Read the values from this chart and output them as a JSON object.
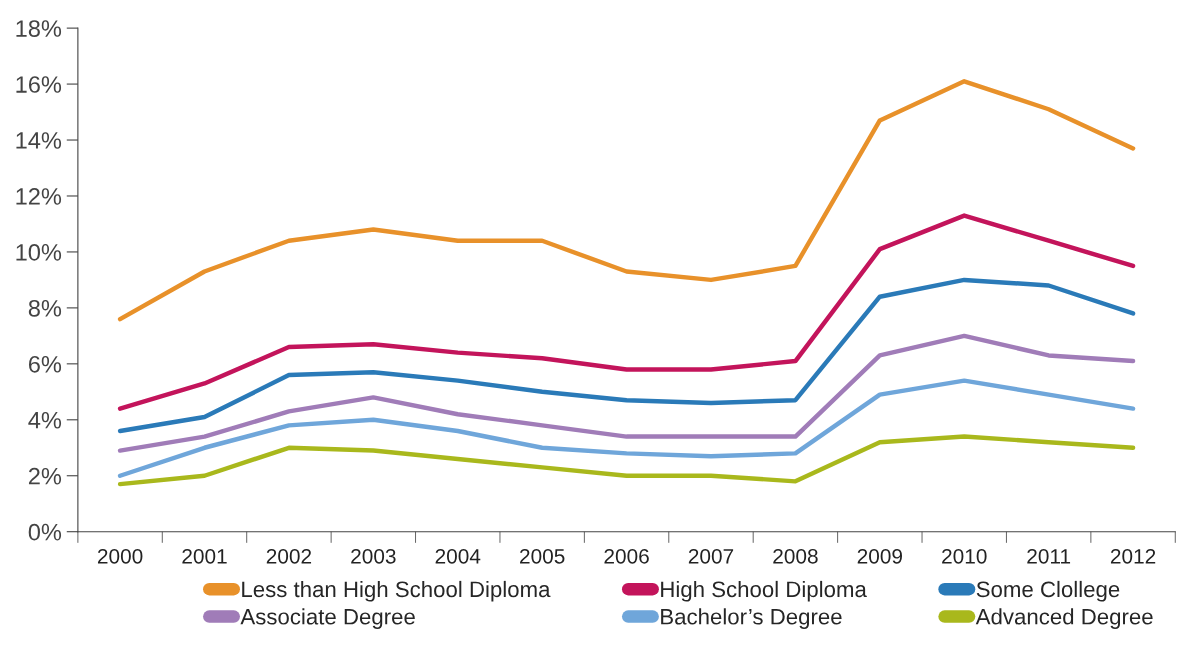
{
  "chart_data": {
    "type": "line",
    "categories": [
      "2000",
      "2001",
      "2002",
      "2003",
      "2004",
      "2005",
      "2006",
      "2007",
      "2008",
      "2009",
      "2010",
      "2011",
      "2012"
    ],
    "series": [
      {
        "name": "Less than High School Diploma",
        "color": "#e8912a",
        "values": [
          7.6,
          9.3,
          10.4,
          10.8,
          10.4,
          10.4,
          9.3,
          9.0,
          9.5,
          14.7,
          16.1,
          15.1,
          13.7
        ]
      },
      {
        "name": "High School Diploma",
        "color": "#c3145b",
        "values": [
          4.4,
          5.3,
          6.6,
          6.7,
          6.4,
          6.2,
          5.8,
          5.8,
          6.1,
          10.1,
          11.3,
          10.4,
          9.5
        ]
      },
      {
        "name": "Some Clollege",
        "color": "#2a7ab8",
        "values": [
          3.6,
          4.1,
          5.6,
          5.7,
          5.4,
          5.0,
          4.7,
          4.6,
          4.7,
          8.4,
          9.0,
          8.8,
          7.8
        ]
      },
      {
        "name": "Associate Degree",
        "color": "#a07cb8",
        "values": [
          2.9,
          3.4,
          4.3,
          4.8,
          4.2,
          3.8,
          3.4,
          3.4,
          3.4,
          6.3,
          7.0,
          6.3,
          6.1
        ]
      },
      {
        "name": "Bachelor’s Degree",
        "color": "#6fa6da",
        "values": [
          2.0,
          3.0,
          3.8,
          4.0,
          3.6,
          3.0,
          2.8,
          2.7,
          2.8,
          4.9,
          5.4,
          4.9,
          4.4
        ]
      },
      {
        "name": "Advanced Degree",
        "color": "#a9b81c",
        "values": [
          1.7,
          2.0,
          3.0,
          2.9,
          2.6,
          2.3,
          2.0,
          2.0,
          1.8,
          3.2,
          3.4,
          3.2,
          3.0
        ]
      }
    ],
    "ylim": [
      0,
      18
    ],
    "yticks": [
      {
        "value": 0,
        "label": "0%"
      },
      {
        "value": 2,
        "label": "2%"
      },
      {
        "value": 4,
        "label": "4%"
      },
      {
        "value": 6,
        "label": "6%"
      },
      {
        "value": 8,
        "label": "8%"
      },
      {
        "value": 10,
        "label": "10%"
      },
      {
        "value": 12,
        "label": "12%"
      },
      {
        "value": 14,
        "label": "14%"
      },
      {
        "value": 16,
        "label": "16%"
      },
      {
        "value": 18,
        "label": "18%"
      }
    ],
    "grid": false,
    "legend": "bottom",
    "marker": "none",
    "line_style": "solid"
  }
}
